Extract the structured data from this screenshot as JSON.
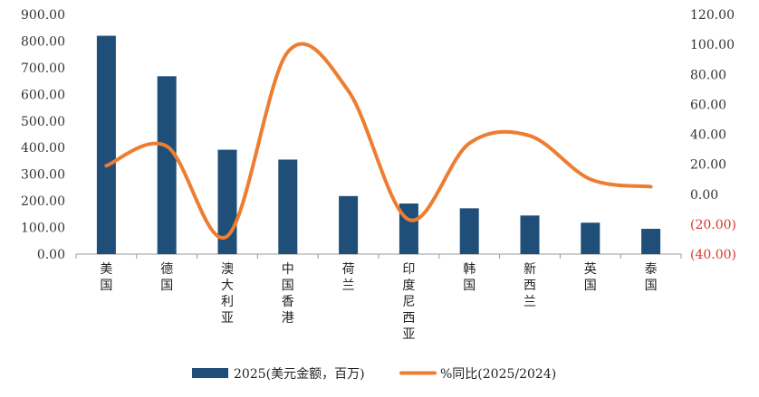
{
  "chart_data": {
    "type": "bar+line",
    "categories": [
      "美国",
      "德国",
      "澳大利亚",
      "中国香港",
      "荷兰",
      "印度尼西亚",
      "韩国",
      "新西兰",
      "英国",
      "泰国"
    ],
    "series": [
      {
        "name": "2025(美元金额，百万)",
        "type": "bar",
        "axis": "left",
        "color": "#1f4e79",
        "values": [
          820,
          668,
          392,
          355,
          218,
          190,
          172,
          145,
          118,
          95
        ]
      },
      {
        "name": "%同比(2025/2024)",
        "type": "line",
        "axis": "right",
        "color": "#ed7d31",
        "values": [
          19,
          32,
          -28,
          95,
          69,
          -17,
          34,
          39,
          10,
          5
        ]
      }
    ],
    "left_axis": {
      "ylim": [
        0,
        900
      ],
      "ticks": [
        0,
        100,
        200,
        300,
        400,
        500,
        600,
        700,
        800,
        900
      ],
      "tick_labels": [
        "0.00",
        "100.00",
        "200.00",
        "300.00",
        "400.00",
        "500.00",
        "600.00",
        "700.00",
        "800.00",
        "900.00"
      ]
    },
    "right_axis": {
      "ylim": [
        -40,
        120
      ],
      "ticks": [
        120,
        100,
        80,
        60,
        40,
        20,
        0,
        -20,
        -40
      ],
      "tick_labels": [
        "120.00",
        "100.00",
        "80.00",
        "60.00",
        "40.00",
        "20.00",
        "0.00",
        "(20.00)",
        "(40.00)"
      ],
      "negative_color": "#d9342b"
    },
    "legend": {
      "position": "bottom"
    },
    "grid": false
  }
}
